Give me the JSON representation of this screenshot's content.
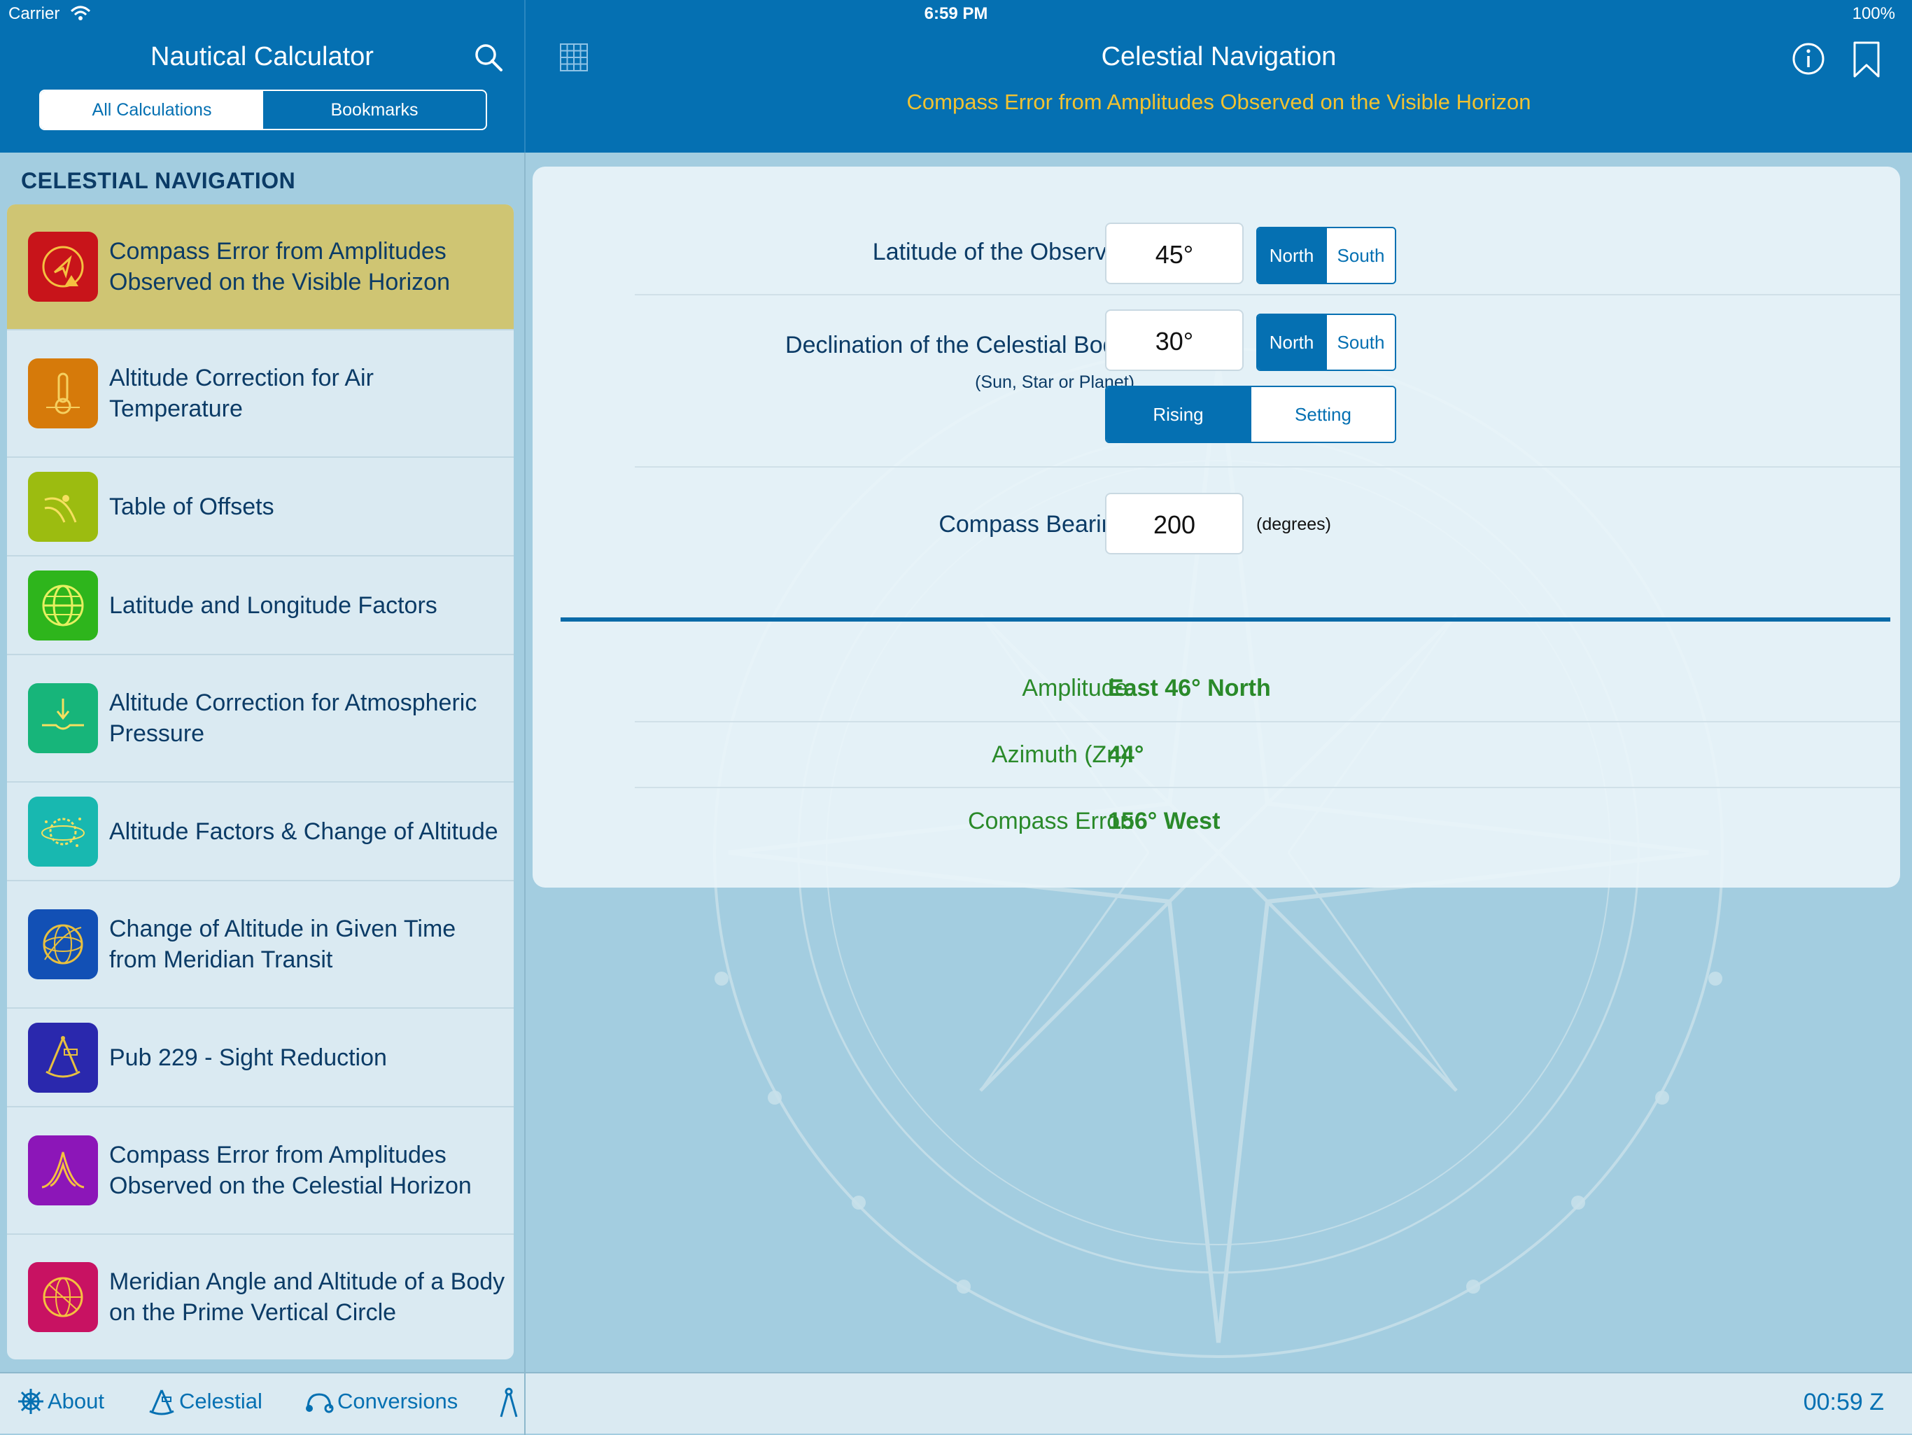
{
  "status_bar": {
    "carrier": "Carrier",
    "time": "6:59 PM",
    "battery": "100%"
  },
  "sidebar": {
    "title": "Nautical Calculator",
    "segments": [
      "All Calculations",
      "Bookmarks"
    ],
    "selected_segment": "All Calculations",
    "section": "CELESTIAL NAVIGATION",
    "items": [
      {
        "label": "Compass Error from Amplitudes Observed on the Visible Horizon",
        "icon": "compass-warning-icon",
        "color": "#c8141a",
        "selected": true
      },
      {
        "label": "Altitude Correction for Air Temperature",
        "icon": "thermometer-icon",
        "color": "#d67a0a"
      },
      {
        "label": "Table of Offsets",
        "icon": "offset-curve-icon",
        "color": "#9cbc10"
      },
      {
        "label": "Latitude and Longitude Factors",
        "icon": "globe-icon",
        "color": "#2eb51c"
      },
      {
        "label": "Altitude Correction for Atmospheric Pressure",
        "icon": "pressure-arrow-icon",
        "color": "#17b57a"
      },
      {
        "label": "Altitude Factors & Change of Altitude",
        "icon": "orbit-globe-icon",
        "color": "#18b8b0"
      },
      {
        "label": "Change of Altitude in Given Time from Meridian Transit",
        "icon": "transit-globe-icon",
        "color": "#1250b5"
      },
      {
        "label": "Pub 229 - Sight Reduction",
        "icon": "sextant-icon",
        "color": "#2a28ad"
      },
      {
        "label": "Compass Error from Amplitudes Observed on the Celestial Horizon",
        "icon": "amplitude-curve-icon",
        "color": "#8c16b8"
      },
      {
        "label": "Meridian Angle and Altitude of a Body on the Prime Vertical Circle",
        "icon": "prime-vertical-icon",
        "color": "#c81262"
      }
    ]
  },
  "header": {
    "title": "Celestial Navigation",
    "subtitle": "Compass Error from Amplitudes Observed on the Visible Horizon"
  },
  "form": {
    "latitude": {
      "label": "Latitude of the Observer:",
      "value": "45°",
      "options": [
        "North",
        "South"
      ],
      "selected": "North"
    },
    "declination": {
      "label": "Declination of the Celestial Body:",
      "note": "(Sun, Star or Planet)",
      "value": "30°",
      "options": [
        "North",
        "South"
      ],
      "selected": "North"
    },
    "event": {
      "options": [
        "Rising",
        "Setting"
      ],
      "selected": "Rising"
    },
    "bearing": {
      "label": "Compass Bearing:",
      "value": "200",
      "units": "(degrees)"
    }
  },
  "results": [
    {
      "label": "Amplitude:",
      "value": "East 46° North"
    },
    {
      "label": "Azimuth (Zn):",
      "value": "44°"
    },
    {
      "label": "Compass Error:",
      "value": "156° West"
    }
  ],
  "tabbar": {
    "tabs": [
      {
        "label": "About",
        "icon": "helm-icon"
      },
      {
        "label": "Celestial",
        "icon": "sextant-icon"
      },
      {
        "label": "Conversions",
        "icon": "conversion-icon"
      },
      {
        "label": "",
        "icon": "dividers-icon"
      }
    ],
    "clock": "00:59 Z"
  }
}
